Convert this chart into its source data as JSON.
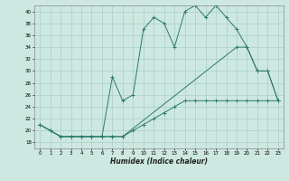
{
  "title": "",
  "xlabel": "Humidex (Indice chaleur)",
  "ylabel": "",
  "background_color": "#cce8e0",
  "line_color": "#2d7a6b",
  "grid_color": "#aacfc8",
  "xlim": [
    -0.5,
    23.5
  ],
  "ylim": [
    17,
    41
  ],
  "yticks": [
    18,
    20,
    22,
    24,
    26,
    28,
    30,
    32,
    34,
    36,
    38,
    40
  ],
  "xticks": [
    0,
    1,
    2,
    3,
    4,
    5,
    6,
    7,
    8,
    9,
    10,
    11,
    12,
    13,
    14,
    15,
    16,
    17,
    18,
    19,
    20,
    21,
    22,
    23
  ],
  "series": [
    {
      "x": [
        0,
        1,
        2,
        3,
        4,
        5,
        6,
        7,
        8,
        9,
        10,
        11,
        12,
        13,
        14,
        15,
        16,
        17,
        18,
        19,
        20,
        21,
        22,
        23
      ],
      "y": [
        21,
        20,
        19,
        19,
        19,
        19,
        19,
        19,
        19,
        20,
        21,
        22,
        23,
        24,
        25,
        25,
        25,
        25,
        25,
        25,
        25,
        25,
        25,
        25
      ]
    },
    {
      "x": [
        0,
        1,
        2,
        3,
        4,
        5,
        6,
        7,
        8,
        19,
        20,
        21,
        22,
        23
      ],
      "y": [
        21,
        20,
        19,
        19,
        19,
        19,
        19,
        19,
        19,
        34,
        34,
        30,
        30,
        25
      ]
    },
    {
      "x": [
        0,
        1,
        2,
        3,
        4,
        5,
        6,
        7,
        8,
        9,
        10,
        11,
        12,
        13,
        14,
        15,
        16,
        17,
        18,
        19,
        20,
        21,
        22,
        23
      ],
      "y": [
        21,
        20,
        19,
        19,
        19,
        19,
        19,
        29,
        25,
        26,
        37,
        39,
        38,
        34,
        40,
        41,
        39,
        41,
        39,
        37,
        34,
        30,
        30,
        25
      ]
    }
  ]
}
